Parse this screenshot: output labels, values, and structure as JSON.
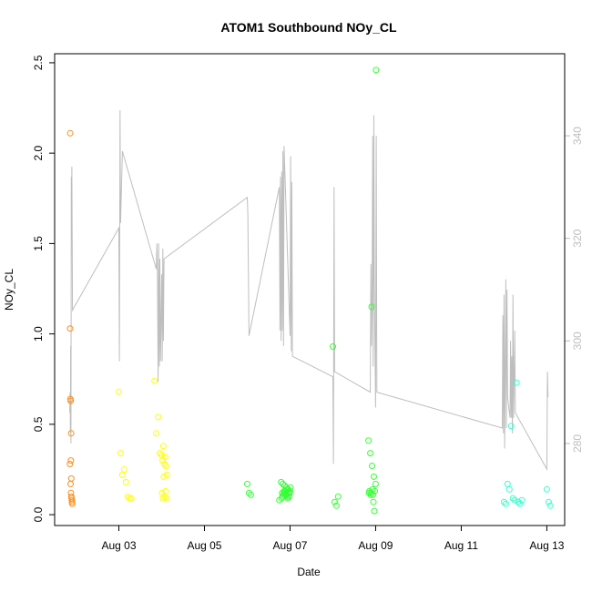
{
  "chart_data": {
    "type": "scatter",
    "title": "ATOM1 Southbound NOy_CL",
    "xlabel": "Date",
    "ylabel": "NOy_CL",
    "xlim": [
      "2016-08-01T12:00",
      "2016-08-13T10:00"
    ],
    "ylim": [
      -0.06,
      2.55
    ],
    "y_ticks": [
      "0.0",
      "0.5",
      "1.0",
      "1.5",
      "2.0",
      "2.5"
    ],
    "x_ticks": [
      {
        "date": "2016-08-03",
        "label": "Aug 03"
      },
      {
        "date": "2016-08-05",
        "label": "Aug 05"
      },
      {
        "date": "2016-08-07",
        "label": "Aug 07"
      },
      {
        "date": "2016-08-09",
        "label": "Aug 09"
      },
      {
        "date": "2016-08-11",
        "label": "Aug 11"
      },
      {
        "date": "2016-08-13",
        "label": "Aug 13"
      }
    ],
    "y2lim": [
      264,
      356
    ],
    "y2_ticks": [
      "280",
      "300",
      "320",
      "340"
    ],
    "grid": false,
    "series": [
      {
        "color": "#FF8C1A",
        "x": [
          "2016-08-01T20:45",
          "2016-08-01T20:40",
          "2016-08-01T20:50",
          "2016-08-01T21:00",
          "2016-08-01T21:15",
          "2016-08-01T21:05",
          "2016-08-01T20:35",
          "2016-08-01T21:20",
          "2016-08-01T20:55",
          "2016-08-01T21:10",
          "2016-08-01T21:25",
          "2016-08-01T21:30",
          "2016-08-01T21:40",
          "2016-08-01T21:50",
          "2016-08-01T21:45"
        ],
        "y": [
          2.11,
          1.03,
          0.64,
          0.63,
          0.45,
          0.3,
          0.28,
          0.2,
          0.17,
          0.12,
          0.1,
          0.09,
          0.08,
          0.06,
          0.07
        ]
      },
      {
        "color": "#FFFF00",
        "x": [
          "2016-08-03T00:00",
          "2016-08-03T01:00",
          "2016-08-03T03:00",
          "2016-08-03T02:00",
          "2016-08-03T04:00",
          "2016-08-03T05:00",
          "2016-08-03T06:00",
          "2016-08-03T07:00",
          "2016-08-03T20:00",
          "2016-08-03T22:00",
          "2016-08-03T21:00",
          "2016-08-04T01:00",
          "2016-08-03T23:00",
          "2016-08-04T00:00",
          "2016-08-04T02:00",
          "2016-08-04T00:30",
          "2016-08-04T01:30",
          "2016-08-04T02:30",
          "2016-08-04T03:00",
          "2016-08-04T01:15",
          "2016-08-04T02:15",
          "2016-08-04T00:15",
          "2016-08-04T01:45",
          "2016-08-04T02:45",
          "2016-08-04T00:45"
        ],
        "y": [
          0.68,
          0.34,
          0.25,
          0.22,
          0.18,
          0.1,
          0.09,
          0.09,
          0.74,
          0.54,
          0.45,
          0.38,
          0.34,
          0.33,
          0.32,
          0.3,
          0.28,
          0.27,
          0.22,
          0.21,
          0.13,
          0.12,
          0.1,
          0.09,
          0.09
        ]
      },
      {
        "color": "#33FF33",
        "x": [
          "2016-08-06T00:00",
          "2016-08-06T01:00",
          "2016-08-06T02:00",
          "2016-08-06T19:00",
          "2016-08-06T20:00",
          "2016-08-06T21:00",
          "2016-08-06T22:00",
          "2016-08-06T23:00",
          "2016-08-07T00:00",
          "2016-08-06T19:30",
          "2016-08-06T20:30",
          "2016-08-06T21:30",
          "2016-08-06T22:30",
          "2016-08-06T23:30",
          "2016-08-06T18:00",
          "2016-08-06T19:15",
          "2016-08-06T20:15",
          "2016-08-06T21:15",
          "2016-08-06T22:15",
          "2016-08-06T23:15",
          "2016-08-07T00:15",
          "2016-08-06T19:45",
          "2016-08-06T20:45",
          "2016-08-06T21:45",
          "2016-08-06T22:45",
          "2016-08-06T23:45",
          "2016-08-08T00:00",
          "2016-08-08T01:00",
          "2016-08-08T02:00",
          "2016-08-08T03:00",
          "2016-08-08T20:00",
          "2016-08-08T21:00",
          "2016-08-08T22:00",
          "2016-08-08T23:00",
          "2016-08-09T00:00",
          "2016-08-08T20:30",
          "2016-08-08T21:30",
          "2016-08-08T22:30",
          "2016-08-08T23:30",
          "2016-08-08T20:15",
          "2016-08-08T21:15",
          "2016-08-08T22:15",
          "2016-08-08T23:15",
          "2016-08-09T00:15",
          "2016-08-08T21:45",
          "2016-08-08T22:45"
        ],
        "y": [
          0.17,
          0.12,
          0.11,
          0.18,
          0.17,
          0.16,
          0.15,
          0.14,
          0.13,
          0.12,
          0.12,
          0.11,
          0.1,
          0.1,
          0.08,
          0.09,
          0.11,
          0.13,
          0.14,
          0.12,
          0.15,
          0.1,
          0.13,
          0.11,
          0.09,
          0.12,
          0.93,
          0.07,
          0.05,
          0.1,
          0.41,
          0.34,
          0.27,
          0.21,
          0.17,
          0.13,
          0.12,
          0.11,
          0.13,
          0.12,
          0.11,
          0.14,
          0.02,
          2.46,
          1.15,
          0.07
        ]
      },
      {
        "color": "#33FFCC",
        "x": [
          "2016-08-12T00:00",
          "2016-08-12T01:00",
          "2016-08-12T02:00",
          "2016-08-12T03:00",
          "2016-08-12T04:00",
          "2016-08-12T05:00",
          "2016-08-12T06:00",
          "2016-08-12T07:00",
          "2016-08-12T08:00",
          "2016-08-12T09:00",
          "2016-08-12T10:00",
          "2016-08-13T00:00",
          "2016-08-13T01:00",
          "2016-08-13T02:00"
        ],
        "y": [
          0.07,
          0.06,
          0.17,
          0.14,
          0.49,
          0.09,
          0.08,
          0.73,
          0.07,
          0.06,
          0.08,
          0.14,
          0.07,
          0.05
        ]
      }
    ],
    "secondary_line": {
      "color": "#BEBEBE",
      "x": [
        "2016-08-01T20:30",
        "2016-08-01T20:40",
        "2016-08-01T20:50",
        "2016-08-01T21:00",
        "2016-08-01T21:10",
        "2016-08-01T21:20",
        "2016-08-01T21:30",
        "2016-08-01T21:40",
        "2016-08-01T22:00",
        "2016-08-03T00:00",
        "2016-08-03T00:20",
        "2016-08-03T00:40",
        "2016-08-03T01:00",
        "2016-08-03T02:00",
        "2016-08-03T21:00",
        "2016-08-03T21:20",
        "2016-08-03T21:40",
        "2016-08-03T22:00",
        "2016-08-03T22:20",
        "2016-08-03T22:40",
        "2016-08-03T23:00",
        "2016-08-03T23:20",
        "2016-08-04T00:00",
        "2016-08-04T00:20",
        "2016-08-04T00:40",
        "2016-08-04T01:00",
        "2016-08-04T01:20",
        "2016-08-06T00:00",
        "2016-08-06T00:20",
        "2016-08-06T01:00",
        "2016-08-06T18:00",
        "2016-08-06T18:20",
        "2016-08-06T18:40",
        "2016-08-06T19:00",
        "2016-08-06T19:20",
        "2016-08-06T19:40",
        "2016-08-06T20:00",
        "2016-08-06T20:20",
        "2016-08-06T20:40",
        "2016-08-07T00:00",
        "2016-08-07T00:20",
        "2016-08-07T00:40",
        "2016-08-07T01:00",
        "2016-08-07T01:20",
        "2016-08-08T00:00",
        "2016-08-08T00:20",
        "2016-08-08T00:40",
        "2016-08-08T01:00",
        "2016-08-08T21:00",
        "2016-08-08T21:20",
        "2016-08-08T21:40",
        "2016-08-08T22:00",
        "2016-08-08T22:20",
        "2016-08-08T22:40",
        "2016-08-08T23:00",
        "2016-08-08T23:20",
        "2016-08-09T00:00",
        "2016-08-09T00:20",
        "2016-08-09T00:40",
        "2016-08-11T23:00",
        "2016-08-11T23:20",
        "2016-08-11T23:40",
        "2016-08-12T00:00",
        "2016-08-12T00:20",
        "2016-08-12T01:00",
        "2016-08-12T01:20",
        "2016-08-12T01:40",
        "2016-08-12T02:00",
        "2016-08-12T03:00",
        "2016-08-12T03:20",
        "2016-08-12T03:40",
        "2016-08-12T04:00",
        "2016-08-12T04:20",
        "2016-08-12T04:40",
        "2016-08-12T05:00",
        "2016-08-12T05:20",
        "2016-08-12T06:00",
        "2016-08-12T06:20",
        "2016-08-13T00:00",
        "2016-08-13T00:20",
        "2016-08-13T00:40"
      ],
      "y": [
        286,
        290,
        282,
        299,
        280,
        332,
        326,
        334,
        306,
        322,
        296,
        345,
        323,
        337,
        314,
        319,
        313,
        292,
        319,
        295,
        316,
        296,
        313,
        296,
        318,
        300,
        316,
        328,
        325,
        301,
        330,
        302,
        332,
        300,
        333,
        302,
        337,
        299,
        338,
        301,
        336,
        298,
        331,
        297,
        293,
        276,
        330,
        294,
        290,
        315,
        299,
        307,
        340,
        295,
        344,
        310,
        287,
        340,
        290,
        283,
        305,
        282,
        309,
        279,
        312,
        283,
        310,
        289,
        286,
        285,
        300,
        285,
        297,
        282,
        309,
        285,
        302,
        286,
        275,
        294,
        289
      ]
    }
  }
}
